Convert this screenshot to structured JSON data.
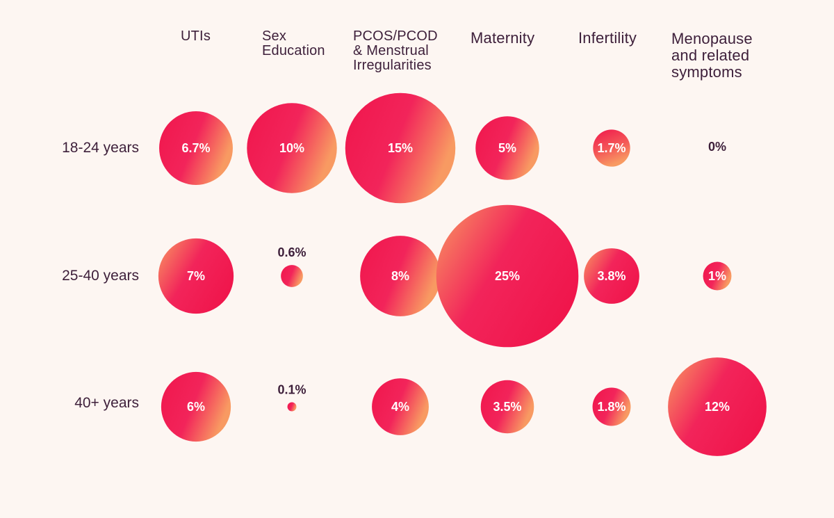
{
  "chart_data": {
    "type": "bubble-matrix",
    "title": "",
    "columns": [
      "UTIs",
      "Sex\nEducation",
      "PCOS/PCOD\n& Menstrual\nIrregularities",
      "Maternity",
      "Infertility",
      "Menopause\nand related\nsymptoms"
    ],
    "rows": [
      "18-24 years",
      "25-40 years",
      "40+ years"
    ],
    "values": [
      [
        6.7,
        10,
        15,
        5,
        1.7,
        0
      ],
      [
        7,
        0.6,
        8,
        25,
        3.8,
        1
      ],
      [
        6,
        0.1,
        4,
        3.5,
        1.8,
        12
      ]
    ],
    "labels": [
      [
        "6.7%",
        "10%",
        "15%",
        "5%",
        "1.7%",
        "0%"
      ],
      [
        "7%",
        "0.6%",
        "8%",
        "25%",
        "3.8%",
        "1%"
      ],
      [
        "6%",
        "0.1%",
        "4%",
        "3.5%",
        "1.8%",
        "12%"
      ]
    ],
    "colors": {
      "primary": "#f0164c",
      "secondary": "#f7975f",
      "text": "#3d1f3a",
      "background": "#fdf6f2"
    }
  }
}
